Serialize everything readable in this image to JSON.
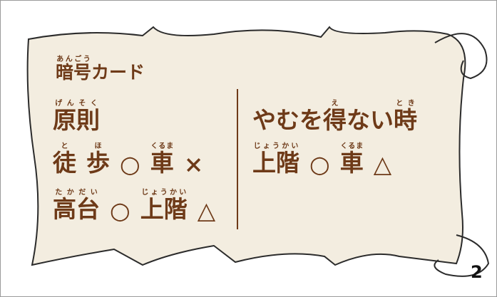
{
  "card": {
    "title": [
      {
        "text": "暗号",
        "ruby": "あんごう"
      },
      {
        "text": "カード"
      }
    ],
    "left": {
      "heading": [
        {
          "text": "原則",
          "ruby": "げんそく"
        }
      ],
      "lines": [
        [
          {
            "text": "徒",
            "ruby": "と"
          },
          {
            "text": "歩",
            "ruby": "ほ"
          },
          {
            "text": "○"
          },
          {
            "text": "車",
            "ruby": "くるま"
          },
          {
            "text": "×"
          }
        ],
        [
          {
            "text": "高台",
            "ruby": "たかだい"
          },
          {
            "text": "○"
          },
          {
            "text": "上階",
            "ruby": "じょうかい"
          },
          {
            "text": "△"
          }
        ]
      ]
    },
    "right": {
      "heading": [
        {
          "text": "やむを"
        },
        {
          "text": "得",
          "ruby": "え"
        },
        {
          "text": "ない"
        },
        {
          "text": "時",
          "ruby": "とき"
        }
      ],
      "lines": [
        [
          {
            "text": "上階",
            "ruby": "じょうかい"
          },
          {
            "text": "○"
          },
          {
            "text": "車",
            "ruby": "くるま"
          },
          {
            "text": "△"
          }
        ]
      ]
    },
    "page_number": "2"
  }
}
